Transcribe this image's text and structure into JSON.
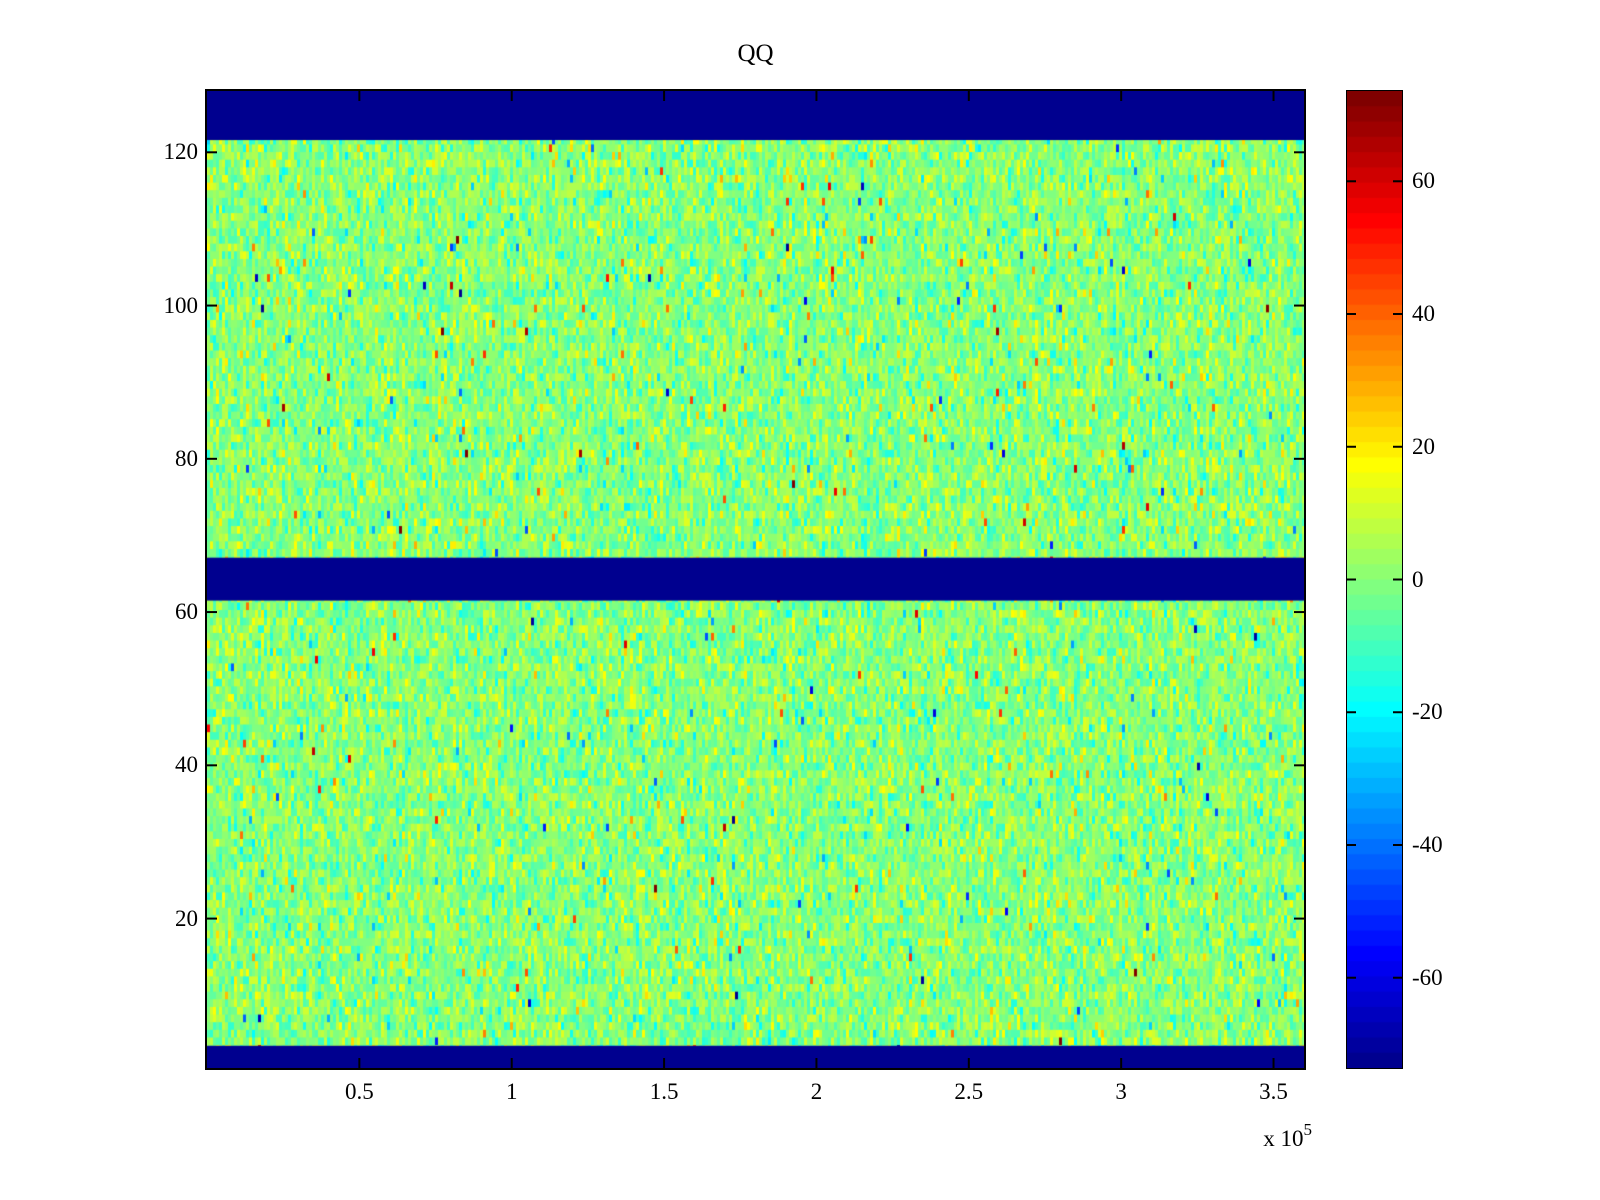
{
  "chart_data": {
    "type": "heatmap",
    "title": "QQ",
    "x_axis": {
      "range": [
        0,
        360000
      ],
      "tick_values": [
        50000,
        100000,
        150000,
        200000,
        250000,
        300000,
        350000
      ],
      "tick_labels": [
        "0.5",
        "1",
        "1.5",
        "2",
        "2.5",
        "3",
        "3.5"
      ],
      "offset_base": "x 10",
      "offset_exponent": "5"
    },
    "y_axis": {
      "range": [
        0.5,
        128
      ],
      "tick_values": [
        20,
        40,
        60,
        80,
        100,
        120
      ],
      "tick_labels": [
        "20",
        "40",
        "60",
        "80",
        "100",
        "120"
      ]
    },
    "colorbar": {
      "colormap": "jet",
      "levels": 64,
      "clim": [
        -73.6,
        73.6
      ],
      "tick_values": [
        60,
        40,
        20,
        0,
        -20,
        -40,
        -60
      ],
      "tick_labels": [
        "60",
        "40",
        "20",
        "0",
        "-20",
        "-40",
        "-60"
      ]
    },
    "grid_rows": 128,
    "blank_bands_row_ranges": [
      {
        "from": 0.5,
        "to": 3.4
      },
      {
        "from": 61.5,
        "to": 67.1
      },
      {
        "from": 121.6,
        "to": 128
      }
    ],
    "noise_field": {
      "mean": 0,
      "std": 8,
      "outlier_fraction": 0.02,
      "outlier_std": 30,
      "seed": 42
    },
    "colors": {
      "band_navy": "#00008F",
      "axis": "#000000",
      "background": "#ffffff"
    },
    "legend": "none",
    "grid": "off"
  }
}
